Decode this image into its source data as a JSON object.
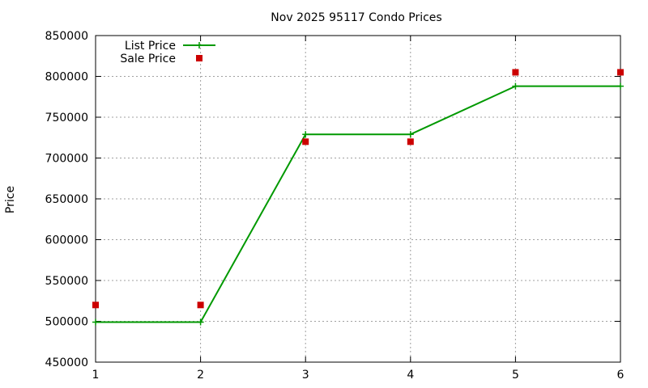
{
  "chart_data": {
    "type": "line",
    "title": "Nov 2025 95117 Condo Prices",
    "xlabel": "",
    "ylabel": "Price",
    "x": [
      1,
      2,
      3,
      4,
      5,
      6
    ],
    "xlim": [
      1,
      6
    ],
    "ylim": [
      450000,
      850000
    ],
    "xticks": [
      1,
      2,
      3,
      4,
      5,
      6
    ],
    "yticks": [
      450000,
      500000,
      550000,
      600000,
      650000,
      700000,
      750000,
      800000,
      850000
    ],
    "grid": true,
    "legend_position": "top-left",
    "series": [
      {
        "name": "List Price",
        "style": "linespoints",
        "marker": "plus",
        "color": "#009900",
        "values": [
          499000,
          499000,
          729000,
          729000,
          788000,
          788000
        ]
      },
      {
        "name": "Sale Price",
        "style": "points",
        "marker": "square",
        "color": "#cc0000",
        "values": [
          520000,
          520000,
          720000,
          720000,
          805000,
          805000
        ]
      }
    ]
  }
}
